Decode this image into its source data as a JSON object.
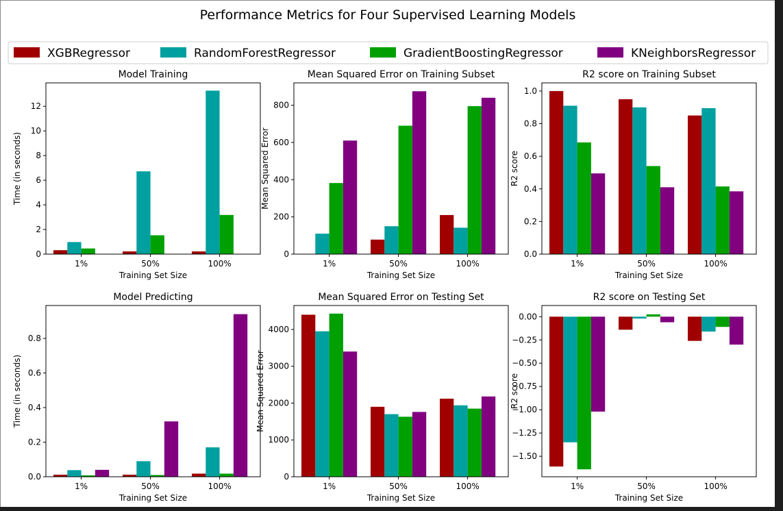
{
  "figure": {
    "title": "Performance Metrics for Four Supervised Learning Models",
    "legend": [
      {
        "name": "XGBRegressor",
        "color": "#a00000"
      },
      {
        "name": "RandomForestRegressor",
        "color": "#00a0a0"
      },
      {
        "name": "GradientBoostingRegressor",
        "color": "#00a000"
      },
      {
        "name": "KNeighborsRegressor",
        "color": "#800080"
      }
    ],
    "legend_placement": "top"
  },
  "chart_data": [
    {
      "type": "bar",
      "title": "Model Training",
      "xlabel": "Training Set Size",
      "ylabel": "Time (in seconds)",
      "categories": [
        "1%",
        "50%",
        "100%"
      ],
      "ylim": [
        0,
        13.9
      ],
      "yticks": [
        0,
        2,
        4,
        6,
        8,
        10,
        12
      ],
      "ytick_labels": [
        "0",
        "2",
        "4",
        "6",
        "8",
        "10",
        "12"
      ],
      "series": [
        {
          "name": "XGBRegressor",
          "values": [
            0.32,
            0.22,
            0.22
          ]
        },
        {
          "name": "RandomForestRegressor",
          "values": [
            0.98,
            6.72,
            13.27
          ]
        },
        {
          "name": "GradientBoostingRegressor",
          "values": [
            0.46,
            1.53,
            3.18
          ]
        },
        {
          "name": "KNeighborsRegressor",
          "values": [
            0.002,
            0.003,
            0.004
          ]
        }
      ]
    },
    {
      "type": "bar",
      "title": "Mean Squared Error on Training Subset",
      "xlabel": "Training Set Size",
      "ylabel": "Mean Squared Error",
      "categories": [
        "1%",
        "50%",
        "100%"
      ],
      "ylim": [
        0,
        920
      ],
      "yticks": [
        0,
        200,
        400,
        600,
        800
      ],
      "ytick_labels": [
        "0",
        "200",
        "400",
        "600",
        "800"
      ],
      "series": [
        {
          "name": "XGBRegressor",
          "values": [
            0,
            78,
            210
          ]
        },
        {
          "name": "RandomForestRegressor",
          "values": [
            110,
            150,
            142
          ]
        },
        {
          "name": "GradientBoostingRegressor",
          "values": [
            382,
            690,
            795
          ]
        },
        {
          "name": "KNeighborsRegressor",
          "values": [
            610,
            875,
            840
          ]
        }
      ]
    },
    {
      "type": "bar",
      "title": "R2 score on Training Subset",
      "xlabel": "Training Set Size",
      "ylabel": "R2 score",
      "categories": [
        "1%",
        "50%",
        "100%"
      ],
      "ylim": [
        0,
        1.05
      ],
      "yticks": [
        0,
        0.2,
        0.4,
        0.6,
        0.8,
        1.0
      ],
      "ytick_labels": [
        "0.0",
        "0.2",
        "0.4",
        "0.6",
        "0.8",
        "1.0"
      ],
      "series": [
        {
          "name": "XGBRegressor",
          "values": [
            1.0,
            0.95,
            0.85
          ]
        },
        {
          "name": "RandomForestRegressor",
          "values": [
            0.91,
            0.9,
            0.895
          ]
        },
        {
          "name": "GradientBoostingRegressor",
          "values": [
            0.685,
            0.54,
            0.415
          ]
        },
        {
          "name": "KNeighborsRegressor",
          "values": [
            0.495,
            0.41,
            0.385
          ]
        }
      ]
    },
    {
      "type": "bar",
      "title": "Model Predicting",
      "xlabel": "Training Set Size",
      "ylabel": "Time (in seconds)",
      "categories": [
        "1%",
        "50%",
        "100%"
      ],
      "ylim": [
        0,
        0.99
      ],
      "yticks": [
        0,
        0.2,
        0.4,
        0.6,
        0.8
      ],
      "ytick_labels": [
        "0.0",
        "0.2",
        "0.4",
        "0.6",
        "0.8"
      ],
      "series": [
        {
          "name": "XGBRegressor",
          "values": [
            0.012,
            0.012,
            0.018
          ]
        },
        {
          "name": "RandomForestRegressor",
          "values": [
            0.038,
            0.09,
            0.17
          ]
        },
        {
          "name": "GradientBoostingRegressor",
          "values": [
            0.008,
            0.01,
            0.018
          ]
        },
        {
          "name": "KNeighborsRegressor",
          "values": [
            0.04,
            0.32,
            0.94
          ]
        }
      ]
    },
    {
      "type": "bar",
      "title": "Mean Squared Error on Testing Set",
      "xlabel": "Training Set Size",
      "ylabel": "Mean Squared Error",
      "categories": [
        "1%",
        "50%",
        "100%"
      ],
      "ylim": [
        0,
        4650
      ],
      "yticks": [
        0,
        1000,
        2000,
        3000,
        4000
      ],
      "ytick_labels": [
        "0",
        "1000",
        "2000",
        "3000",
        "4000"
      ],
      "series": [
        {
          "name": "XGBRegressor",
          "values": [
            4400,
            1900,
            2120
          ]
        },
        {
          "name": "RandomForestRegressor",
          "values": [
            3950,
            1700,
            1940
          ]
        },
        {
          "name": "GradientBoostingRegressor",
          "values": [
            4430,
            1630,
            1850
          ]
        },
        {
          "name": "KNeighborsRegressor",
          "values": [
            3400,
            1760,
            2180
          ]
        }
      ]
    },
    {
      "type": "bar",
      "title": "R2 score on Testing Set",
      "xlabel": "Training Set Size",
      "ylabel": "R2 score",
      "categories": [
        "1%",
        "50%",
        "100%"
      ],
      "ylim": [
        -1.72,
        0.12
      ],
      "yticks": [
        0,
        -0.25,
        -0.5,
        -0.75,
        -1.0,
        -1.25,
        -1.5
      ],
      "ytick_labels": [
        "0.00",
        "−0.25",
        "−0.50",
        "−0.75",
        "−1.00",
        "−1.25",
        "−1.50"
      ],
      "series": [
        {
          "name": "XGBRegressor",
          "values": [
            -1.61,
            -0.14,
            -0.26
          ]
        },
        {
          "name": "RandomForestRegressor",
          "values": [
            -1.35,
            -0.02,
            -0.16
          ]
        },
        {
          "name": "GradientBoostingRegressor",
          "values": [
            -1.64,
            0.025,
            -0.11
          ]
        },
        {
          "name": "KNeighborsRegressor",
          "values": [
            -1.02,
            -0.06,
            -0.3
          ]
        }
      ]
    }
  ]
}
